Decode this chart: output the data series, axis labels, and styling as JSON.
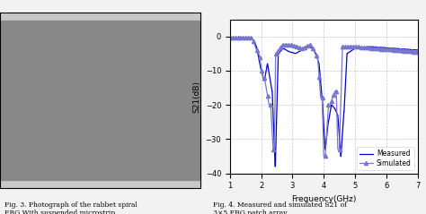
{
  "xlabel": "Frequency(GHz)",
  "ylabel": "S21(dB)",
  "xlim": [
    1,
    7
  ],
  "ylim": [
    -40,
    5
  ],
  "yticks": [
    0,
    -10,
    -20,
    -30,
    -40
  ],
  "xticks": [
    1,
    2,
    3,
    4,
    5,
    6,
    7
  ],
  "line_color_measured": "#0000CC",
  "line_color_simulated": "#7777CC",
  "grid_color": "#BBBBBB",
  "bg_color": "#FFFFFF",
  "fig_bg_color": "#F2F2F2",
  "legend_measured": "Measured",
  "legend_simulated": "Simulated",
  "caption_left": "Fig. 3. Photograph of the rabbet spiral\nEBG With suspended microstrip",
  "caption_right": "Fig. 4. Measured and simulated S21 of\n3×5 EBG patch array"
}
